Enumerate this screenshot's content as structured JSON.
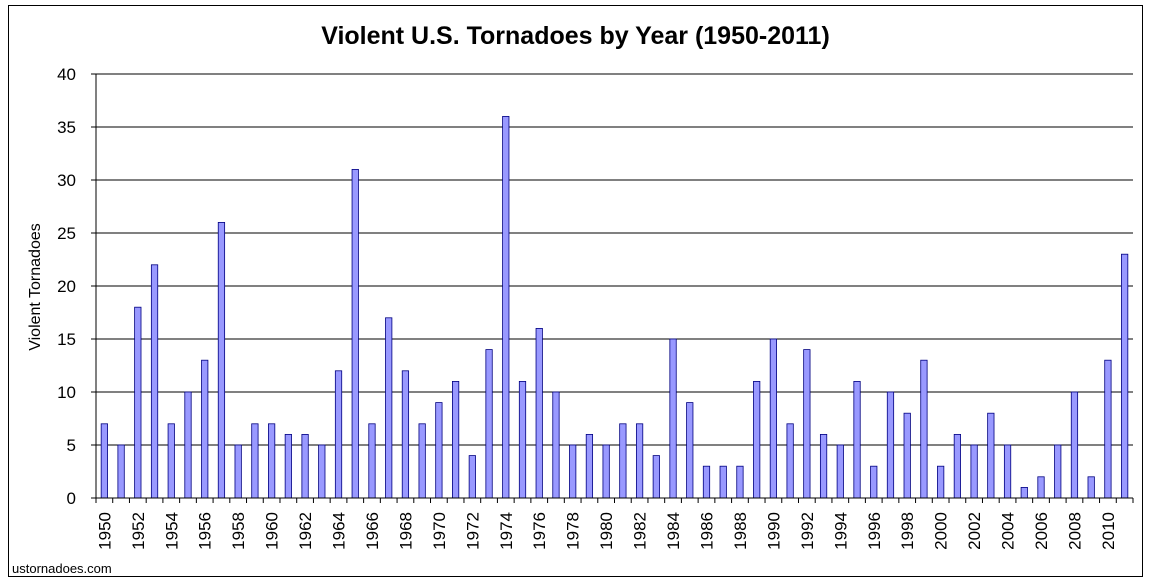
{
  "chart_data": {
    "type": "bar",
    "title": "Violent U.S. Tornadoes by Year (1950-2011)",
    "xlabel": "",
    "ylabel": "Violent Tornadoes",
    "ylim": [
      0,
      40
    ],
    "yticks": [
      0,
      5,
      10,
      15,
      20,
      25,
      30,
      35,
      40
    ],
    "grid": true,
    "legend": "none",
    "bar_color": "#9999ff",
    "bar_edge_color": "#000080",
    "categories": [
      1950,
      1951,
      1952,
      1953,
      1954,
      1955,
      1956,
      1957,
      1958,
      1959,
      1960,
      1961,
      1962,
      1963,
      1964,
      1965,
      1966,
      1967,
      1968,
      1969,
      1970,
      1971,
      1972,
      1973,
      1974,
      1975,
      1976,
      1977,
      1978,
      1979,
      1980,
      1981,
      1982,
      1983,
      1984,
      1985,
      1986,
      1987,
      1988,
      1989,
      1990,
      1991,
      1992,
      1993,
      1994,
      1995,
      1996,
      1997,
      1998,
      1999,
      2000,
      2001,
      2002,
      2003,
      2004,
      2005,
      2006,
      2007,
      2008,
      2009,
      2010,
      2011
    ],
    "values": [
      7,
      5,
      18,
      22,
      7,
      10,
      13,
      26,
      5,
      7,
      7,
      6,
      6,
      5,
      12,
      31,
      7,
      17,
      12,
      7,
      9,
      11,
      4,
      14,
      36,
      11,
      16,
      10,
      5,
      6,
      5,
      7,
      7,
      4,
      15,
      9,
      3,
      3,
      3,
      11,
      15,
      7,
      14,
      6,
      5,
      11,
      3,
      10,
      8,
      13,
      3,
      6,
      5,
      8,
      5,
      1,
      2,
      5,
      10,
      2,
      13,
      23
    ],
    "xtick_labels": [
      "1950",
      "1952",
      "1954",
      "1956",
      "1958",
      "1960",
      "1962",
      "1964",
      "1966",
      "1968",
      "1970",
      "1972",
      "1974",
      "1976",
      "1978",
      "1980",
      "1982",
      "1984",
      "1986",
      "1988",
      "1990",
      "1992",
      "1994",
      "1996",
      "1998",
      "2000",
      "2002",
      "2004",
      "2006",
      "2008",
      "2010"
    ]
  },
  "footer": {
    "source": "ustornadoes.com"
  }
}
